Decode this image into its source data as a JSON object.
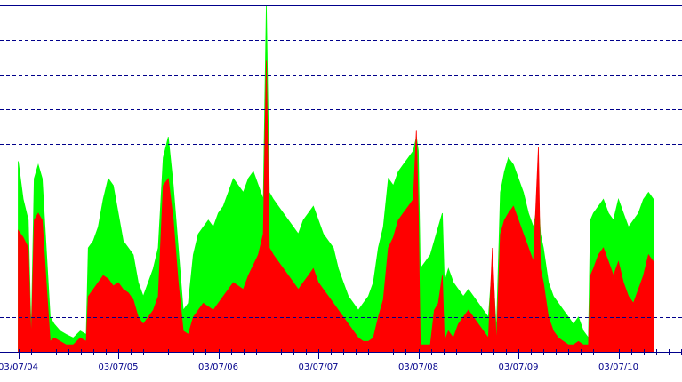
{
  "colors": {
    "background": "#ffffff",
    "grid": "#00008b",
    "axis": "#00008b",
    "series_top": "#00ff00",
    "series_bottom": "#ff0000",
    "tick_label": "#00008b"
  },
  "chart_data": {
    "type": "area",
    "title": "",
    "xlabel": "",
    "ylabel": "",
    "stacked": true,
    "grid": true,
    "grid_style": "dashed-horizontal",
    "legend": "none",
    "x_ticks": [
      "03/07/04",
      "03/07/05",
      "03/07/06",
      "03/07/07",
      "03/07/08",
      "03/07/09",
      "03/07/10"
    ],
    "x_tick_positions_days": [
      0,
      1,
      2,
      3,
      4,
      5,
      6
    ],
    "x_range_days": [
      -0.02,
      6.8
    ],
    "data_end_day": 6.35,
    "ylim": [
      0,
      100
    ],
    "y_gridlines": [
      10,
      50,
      60,
      70,
      80,
      90,
      100
    ],
    "series": [
      {
        "name": "",
        "color": "#ff0000",
        "points": [
          [
            0.0,
            35
          ],
          [
            0.05,
            33
          ],
          [
            0.1,
            30
          ],
          [
            0.13,
            3
          ],
          [
            0.16,
            38
          ],
          [
            0.2,
            40
          ],
          [
            0.24,
            38
          ],
          [
            0.28,
            20
          ],
          [
            0.32,
            3
          ],
          [
            0.36,
            4
          ],
          [
            0.42,
            3
          ],
          [
            0.48,
            2
          ],
          [
            0.55,
            2
          ],
          [
            0.62,
            4
          ],
          [
            0.68,
            3
          ],
          [
            0.7,
            16
          ],
          [
            0.75,
            18
          ],
          [
            0.8,
            20
          ],
          [
            0.85,
            22
          ],
          [
            0.9,
            21
          ],
          [
            0.95,
            19
          ],
          [
            1.0,
            20
          ],
          [
            1.05,
            18
          ],
          [
            1.1,
            17
          ],
          [
            1.15,
            15
          ],
          [
            1.2,
            10
          ],
          [
            1.25,
            8
          ],
          [
            1.3,
            10
          ],
          [
            1.35,
            12
          ],
          [
            1.4,
            16
          ],
          [
            1.45,
            48
          ],
          [
            1.5,
            50
          ],
          [
            1.55,
            38
          ],
          [
            1.6,
            20
          ],
          [
            1.65,
            6
          ],
          [
            1.7,
            5
          ],
          [
            1.75,
            10
          ],
          [
            1.8,
            12
          ],
          [
            1.85,
            14
          ],
          [
            1.9,
            13
          ],
          [
            1.95,
            12
          ],
          [
            2.0,
            14
          ],
          [
            2.05,
            16
          ],
          [
            2.1,
            18
          ],
          [
            2.15,
            20
          ],
          [
            2.2,
            19
          ],
          [
            2.25,
            18
          ],
          [
            2.3,
            22
          ],
          [
            2.35,
            25
          ],
          [
            2.4,
            28
          ],
          [
            2.45,
            34
          ],
          [
            2.48,
            84
          ],
          [
            2.51,
            30
          ],
          [
            2.55,
            28
          ],
          [
            2.6,
            26
          ],
          [
            2.65,
            24
          ],
          [
            2.7,
            22
          ],
          [
            2.75,
            20
          ],
          [
            2.8,
            18
          ],
          [
            2.85,
            20
          ],
          [
            2.9,
            22
          ],
          [
            2.95,
            24
          ],
          [
            3.0,
            20
          ],
          [
            3.05,
            18
          ],
          [
            3.1,
            16
          ],
          [
            3.15,
            14
          ],
          [
            3.2,
            12
          ],
          [
            3.25,
            10
          ],
          [
            3.3,
            8
          ],
          [
            3.35,
            6
          ],
          [
            3.4,
            4
          ],
          [
            3.45,
            3
          ],
          [
            3.5,
            3
          ],
          [
            3.55,
            4
          ],
          [
            3.6,
            10
          ],
          [
            3.65,
            15
          ],
          [
            3.7,
            30
          ],
          [
            3.75,
            33
          ],
          [
            3.8,
            38
          ],
          [
            3.85,
            40
          ],
          [
            3.9,
            42
          ],
          [
            3.95,
            44
          ],
          [
            3.98,
            64
          ],
          [
            4.0,
            40
          ],
          [
            4.02,
            2
          ],
          [
            4.07,
            2
          ],
          [
            4.12,
            2
          ],
          [
            4.16,
            12
          ],
          [
            4.2,
            14
          ],
          [
            4.24,
            22
          ],
          [
            4.26,
            3
          ],
          [
            4.3,
            6
          ],
          [
            4.35,
            4
          ],
          [
            4.4,
            8
          ],
          [
            4.45,
            10
          ],
          [
            4.5,
            12
          ],
          [
            4.55,
            10
          ],
          [
            4.6,
            8
          ],
          [
            4.65,
            6
          ],
          [
            4.7,
            4
          ],
          [
            4.74,
            30
          ],
          [
            4.78,
            2
          ],
          [
            4.82,
            34
          ],
          [
            4.86,
            38
          ],
          [
            4.9,
            40
          ],
          [
            4.95,
            42
          ],
          [
            5.0,
            38
          ],
          [
            5.05,
            34
          ],
          [
            5.1,
            30
          ],
          [
            5.15,
            26
          ],
          [
            5.2,
            59
          ],
          [
            5.22,
            24
          ],
          [
            5.25,
            20
          ],
          [
            5.3,
            10
          ],
          [
            5.35,
            6
          ],
          [
            5.4,
            4
          ],
          [
            5.45,
            3
          ],
          [
            5.5,
            2
          ],
          [
            5.55,
            2
          ],
          [
            5.6,
            3
          ],
          [
            5.65,
            2
          ],
          [
            5.7,
            2
          ],
          [
            5.72,
            22
          ],
          [
            5.75,
            24
          ],
          [
            5.8,
            28
          ],
          [
            5.85,
            30
          ],
          [
            5.9,
            26
          ],
          [
            5.95,
            22
          ],
          [
            6.0,
            26
          ],
          [
            6.05,
            20
          ],
          [
            6.1,
            16
          ],
          [
            6.15,
            14
          ],
          [
            6.2,
            18
          ],
          [
            6.25,
            22
          ],
          [
            6.3,
            28
          ],
          [
            6.35,
            26
          ]
        ]
      },
      {
        "name": "",
        "color": "#00ff00",
        "points": [
          [
            0.0,
            55
          ],
          [
            0.05,
            44
          ],
          [
            0.1,
            38
          ],
          [
            0.13,
            5
          ],
          [
            0.16,
            50
          ],
          [
            0.2,
            54
          ],
          [
            0.24,
            50
          ],
          [
            0.28,
            30
          ],
          [
            0.32,
            10
          ],
          [
            0.36,
            8
          ],
          [
            0.42,
            6
          ],
          [
            0.48,
            5
          ],
          [
            0.55,
            4
          ],
          [
            0.62,
            6
          ],
          [
            0.68,
            5
          ],
          [
            0.7,
            30
          ],
          [
            0.75,
            32
          ],
          [
            0.8,
            36
          ],
          [
            0.85,
            44
          ],
          [
            0.9,
            50
          ],
          [
            0.95,
            48
          ],
          [
            1.0,
            40
          ],
          [
            1.05,
            32
          ],
          [
            1.1,
            30
          ],
          [
            1.15,
            28
          ],
          [
            1.2,
            20
          ],
          [
            1.25,
            16
          ],
          [
            1.3,
            20
          ],
          [
            1.35,
            24
          ],
          [
            1.4,
            30
          ],
          [
            1.45,
            56
          ],
          [
            1.5,
            62
          ],
          [
            1.55,
            48
          ],
          [
            1.6,
            30
          ],
          [
            1.65,
            12
          ],
          [
            1.7,
            14
          ],
          [
            1.75,
            28
          ],
          [
            1.8,
            34
          ],
          [
            1.85,
            36
          ],
          [
            1.9,
            38
          ],
          [
            1.95,
            36
          ],
          [
            2.0,
            40
          ],
          [
            2.05,
            42
          ],
          [
            2.1,
            46
          ],
          [
            2.15,
            50
          ],
          [
            2.2,
            48
          ],
          [
            2.25,
            46
          ],
          [
            2.3,
            50
          ],
          [
            2.35,
            52
          ],
          [
            2.4,
            48
          ],
          [
            2.45,
            44
          ],
          [
            2.48,
            100
          ],
          [
            2.51,
            46
          ],
          [
            2.55,
            44
          ],
          [
            2.6,
            42
          ],
          [
            2.65,
            40
          ],
          [
            2.7,
            38
          ],
          [
            2.75,
            36
          ],
          [
            2.8,
            34
          ],
          [
            2.85,
            38
          ],
          [
            2.9,
            40
          ],
          [
            2.95,
            42
          ],
          [
            3.0,
            38
          ],
          [
            3.05,
            34
          ],
          [
            3.1,
            32
          ],
          [
            3.15,
            30
          ],
          [
            3.2,
            24
          ],
          [
            3.25,
            20
          ],
          [
            3.3,
            16
          ],
          [
            3.35,
            14
          ],
          [
            3.4,
            12
          ],
          [
            3.45,
            14
          ],
          [
            3.5,
            16
          ],
          [
            3.55,
            20
          ],
          [
            3.6,
            30
          ],
          [
            3.65,
            36
          ],
          [
            3.7,
            50
          ],
          [
            3.75,
            48
          ],
          [
            3.8,
            52
          ],
          [
            3.85,
            54
          ],
          [
            3.9,
            56
          ],
          [
            3.95,
            58
          ],
          [
            3.98,
            62
          ],
          [
            4.0,
            58
          ],
          [
            4.02,
            24
          ],
          [
            4.07,
            26
          ],
          [
            4.12,
            28
          ],
          [
            4.16,
            32
          ],
          [
            4.2,
            36
          ],
          [
            4.24,
            40
          ],
          [
            4.26,
            20
          ],
          [
            4.3,
            24
          ],
          [
            4.35,
            20
          ],
          [
            4.4,
            18
          ],
          [
            4.45,
            16
          ],
          [
            4.5,
            18
          ],
          [
            4.55,
            16
          ],
          [
            4.6,
            14
          ],
          [
            4.65,
            12
          ],
          [
            4.7,
            10
          ],
          [
            4.74,
            26
          ],
          [
            4.78,
            6
          ],
          [
            4.82,
            46
          ],
          [
            4.86,
            52
          ],
          [
            4.9,
            56
          ],
          [
            4.95,
            54
          ],
          [
            5.0,
            50
          ],
          [
            5.05,
            46
          ],
          [
            5.1,
            40
          ],
          [
            5.15,
            36
          ],
          [
            5.2,
            44
          ],
          [
            5.22,
            34
          ],
          [
            5.25,
            30
          ],
          [
            5.3,
            20
          ],
          [
            5.35,
            16
          ],
          [
            5.4,
            14
          ],
          [
            5.45,
            12
          ],
          [
            5.5,
            10
          ],
          [
            5.55,
            8
          ],
          [
            5.6,
            10
          ],
          [
            5.65,
            6
          ],
          [
            5.7,
            4
          ],
          [
            5.72,
            38
          ],
          [
            5.75,
            40
          ],
          [
            5.8,
            42
          ],
          [
            5.85,
            44
          ],
          [
            5.9,
            40
          ],
          [
            5.95,
            38
          ],
          [
            6.0,
            44
          ],
          [
            6.05,
            40
          ],
          [
            6.1,
            36
          ],
          [
            6.15,
            38
          ],
          [
            6.2,
            40
          ],
          [
            6.25,
            44
          ],
          [
            6.3,
            46
          ],
          [
            6.35,
            44
          ]
        ]
      }
    ]
  }
}
